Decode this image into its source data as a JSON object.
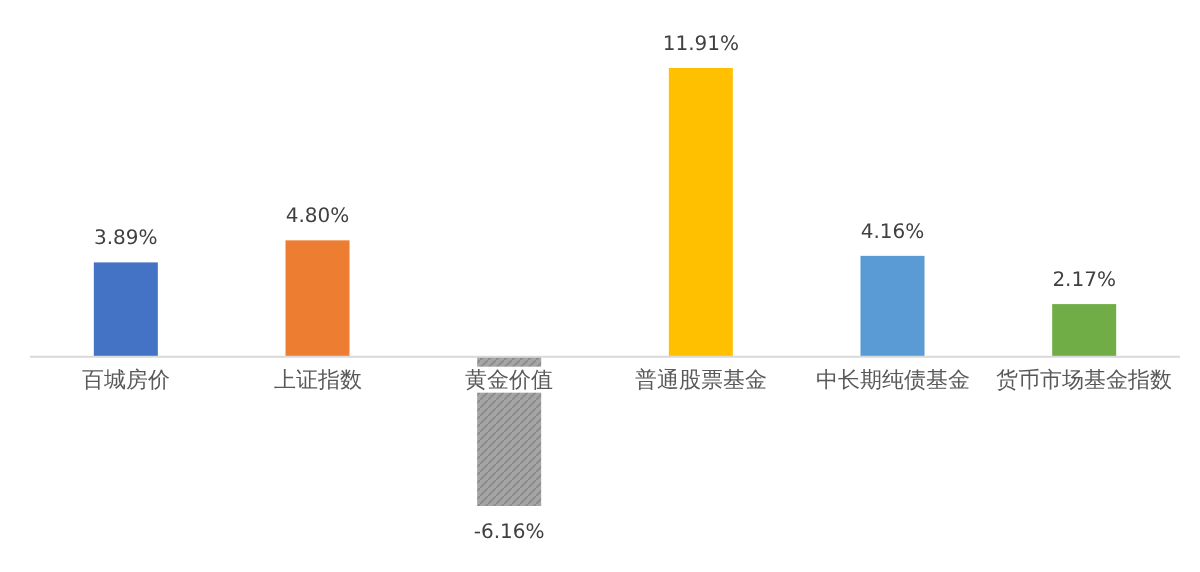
{
  "chart_data": {
    "type": "bar",
    "categories": [
      "百城房价",
      "上证指数",
      "黄金价值",
      "普通股票基金",
      "中长期纯债基金",
      "货币市场基金指数"
    ],
    "values": [
      3.89,
      4.8,
      -6.16,
      11.91,
      4.16,
      2.17
    ],
    "value_labels": [
      "3.89%",
      "4.80%",
      "-6.16%",
      "11.91%",
      "4.16%",
      "2.17%"
    ],
    "colors": [
      "#4472c4",
      "#ed7d31",
      "#a5a5a5",
      "#ffc000",
      "#5b9bd5",
      "#70ad47"
    ]
  }
}
